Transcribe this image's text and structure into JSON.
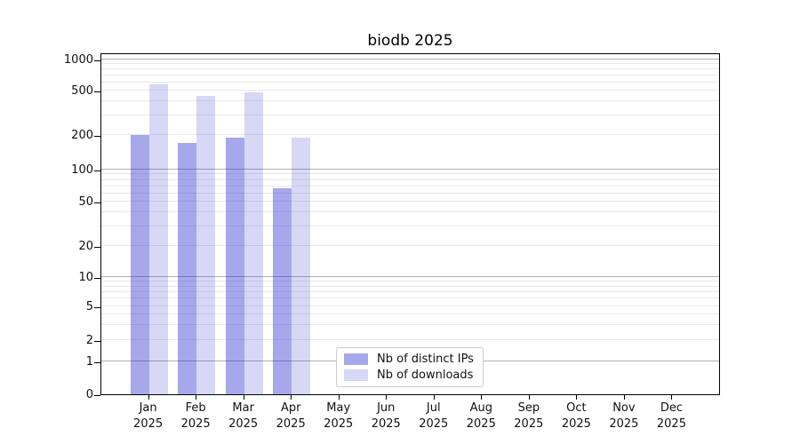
{
  "chart_data": {
    "type": "bar",
    "title": "biodb 2025",
    "categories": [
      {
        "line1": "Jan",
        "line2": "2025"
      },
      {
        "line1": "Feb",
        "line2": "2025"
      },
      {
        "line1": "Mar",
        "line2": "2025"
      },
      {
        "line1": "Apr",
        "line2": "2025"
      },
      {
        "line1": "May",
        "line2": "2025"
      },
      {
        "line1": "Jun",
        "line2": "2025"
      },
      {
        "line1": "Jul",
        "line2": "2025"
      },
      {
        "line1": "Aug",
        "line2": "2025"
      },
      {
        "line1": "Sep",
        "line2": "2025"
      },
      {
        "line1": "Oct",
        "line2": "2025"
      },
      {
        "line1": "Nov",
        "line2": "2025"
      },
      {
        "line1": "Dec",
        "line2": "2025"
      }
    ],
    "series": [
      {
        "name": "Nb of distinct IPs",
        "color": "rgba(34,34,204,0.40)",
        "color_hex_on_white": "#aaaaeb",
        "values": [
          200,
          170,
          188,
          67,
          0,
          0,
          0,
          0,
          0,
          0,
          0,
          0
        ]
      },
      {
        "name": "Nb of downloads",
        "color": "rgba(34,34,204,0.18)",
        "color_hex_on_white": "#d8d8f8",
        "values": [
          570,
          445,
          480,
          188,
          0,
          0,
          0,
          0,
          0,
          0,
          0,
          0
        ]
      }
    ],
    "yscale": "symlog",
    "y_ticks": [
      0,
      1,
      2,
      5,
      10,
      20,
      50,
      100,
      200,
      500,
      1000
    ],
    "ylim": [
      0,
      1000
    ],
    "xlabel": "",
    "ylabel": "",
    "grid": "both",
    "grid_major_color": "#b0b0b0",
    "grid_minor_color": "#e8e8e8",
    "legend_position": "lower center-left inside plot"
  }
}
